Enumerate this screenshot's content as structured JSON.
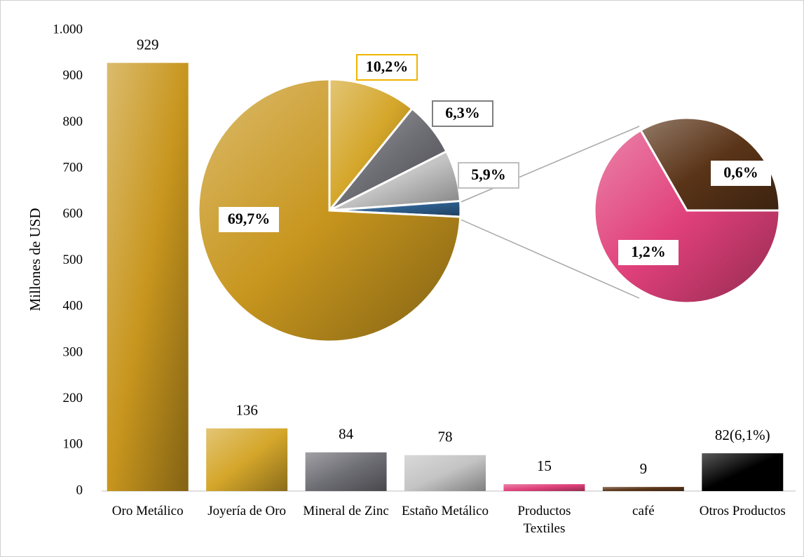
{
  "chart_data": [
    {
      "type": "bar",
      "y_label": "Millones de USD",
      "categories": [
        "Oro Metálico",
        "Joyería de Oro",
        "Mineral de Zinc",
        "Estaño Metálico",
        "Productos Textiles",
        "café",
        "Otros Productos"
      ],
      "values": [
        929,
        136,
        84,
        78,
        15,
        9,
        82
      ],
      "value_labels": [
        "929",
        "136",
        "84",
        "78",
        "15",
        "9",
        "82(6,1%)"
      ],
      "colors": [
        "#c8961e",
        "#d4a62a",
        "#6e6e75",
        "#c4c4c4",
        "#e0407a",
        "#5a3418",
        "#000000"
      ],
      "ylim": [
        0,
        1000
      ],
      "yticks": [
        0,
        100,
        200,
        300,
        400,
        500,
        600,
        700,
        800,
        900,
        {
          "value": 1000,
          "label": "1.000"
        }
      ]
    },
    {
      "type": "pie",
      "values": [
        10.2,
        6.3,
        5.9,
        1.8,
        69.7
      ],
      "value_labels": [
        "10,2%",
        "6,3%",
        "5,9%",
        null,
        "69,7%"
      ],
      "colors": [
        "#d4a62a",
        "#6e6e75",
        "#c4c4c4",
        "#2e5f8e",
        "#c8961e"
      ]
    },
    {
      "type": "pie",
      "values": [
        0.6,
        1.2
      ],
      "value_labels": [
        "0,6%",
        "1,2%"
      ],
      "colors": [
        "#5a3418",
        "#e0407a"
      ]
    }
  ]
}
